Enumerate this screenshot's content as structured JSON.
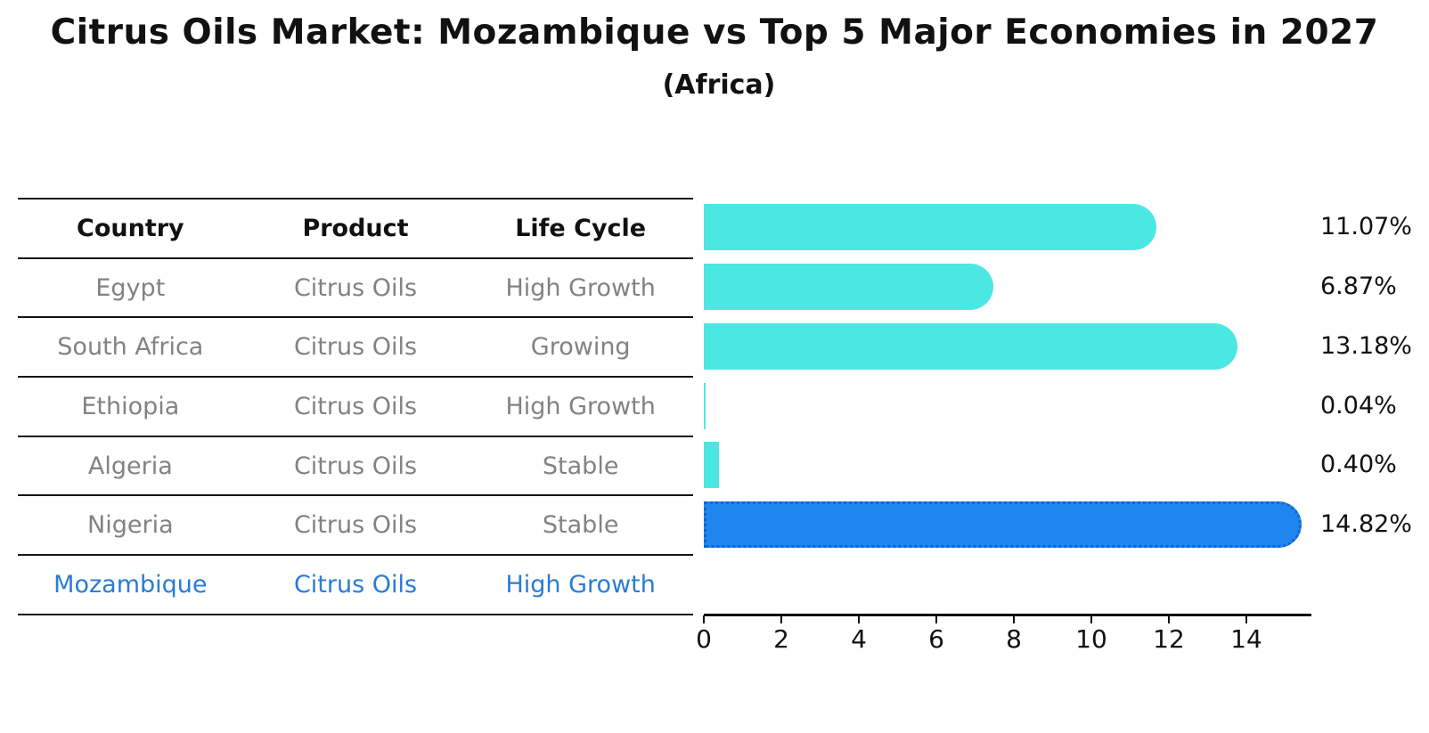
{
  "title": "Citrus Oils Market: Mozambique vs Top 5 Major Economies in 2027",
  "subtitle": "(Africa)",
  "table": {
    "headers": [
      "Country",
      "Product",
      "Life Cycle"
    ],
    "rows": [
      {
        "country": "Egypt",
        "product": "Citrus Oils",
        "life_cycle": "High Growth",
        "highlight": false
      },
      {
        "country": "South Africa",
        "product": "Citrus Oils",
        "life_cycle": "Growing",
        "highlight": false
      },
      {
        "country": "Ethiopia",
        "product": "Citrus Oils",
        "life_cycle": "High Growth",
        "highlight": false
      },
      {
        "country": "Algeria",
        "product": "Citrus Oils",
        "life_cycle": "Stable",
        "highlight": false
      },
      {
        "country": "Nigeria",
        "product": "Citrus Oils",
        "life_cycle": "Stable",
        "highlight": false
      },
      {
        "country": "Mozambique",
        "product": "Citrus Oils",
        "life_cycle": "High Growth",
        "highlight": true
      }
    ]
  },
  "chart_data": {
    "type": "bar",
    "orientation": "horizontal",
    "title": "Citrus Oils Market: Mozambique vs Top 5 Major Economies in 2027 (Africa)",
    "categories": [
      "Egypt",
      "South Africa",
      "Ethiopia",
      "Algeria",
      "Nigeria",
      "Mozambique"
    ],
    "values": [
      11.07,
      6.87,
      13.18,
      0.04,
      0.4,
      14.82
    ],
    "value_labels": [
      "11.07%",
      "6.87%",
      "13.18%",
      "0.04%",
      "0.40%",
      "14.82%"
    ],
    "x_ticks": [
      0,
      2,
      4,
      6,
      8,
      10,
      12,
      14
    ],
    "xlim": [
      0,
      15.6
    ],
    "grid": false,
    "legend": false,
    "highlight_index": 5,
    "bar_color": "#4BE8E3",
    "highlight_color": "#1E86EE",
    "highlight_edge_color": "#1565CB"
  },
  "colors": {
    "header_text": "#111111",
    "row_text": "#828282",
    "highlight_text": "#2B7BD4",
    "axis": "#111111"
  }
}
